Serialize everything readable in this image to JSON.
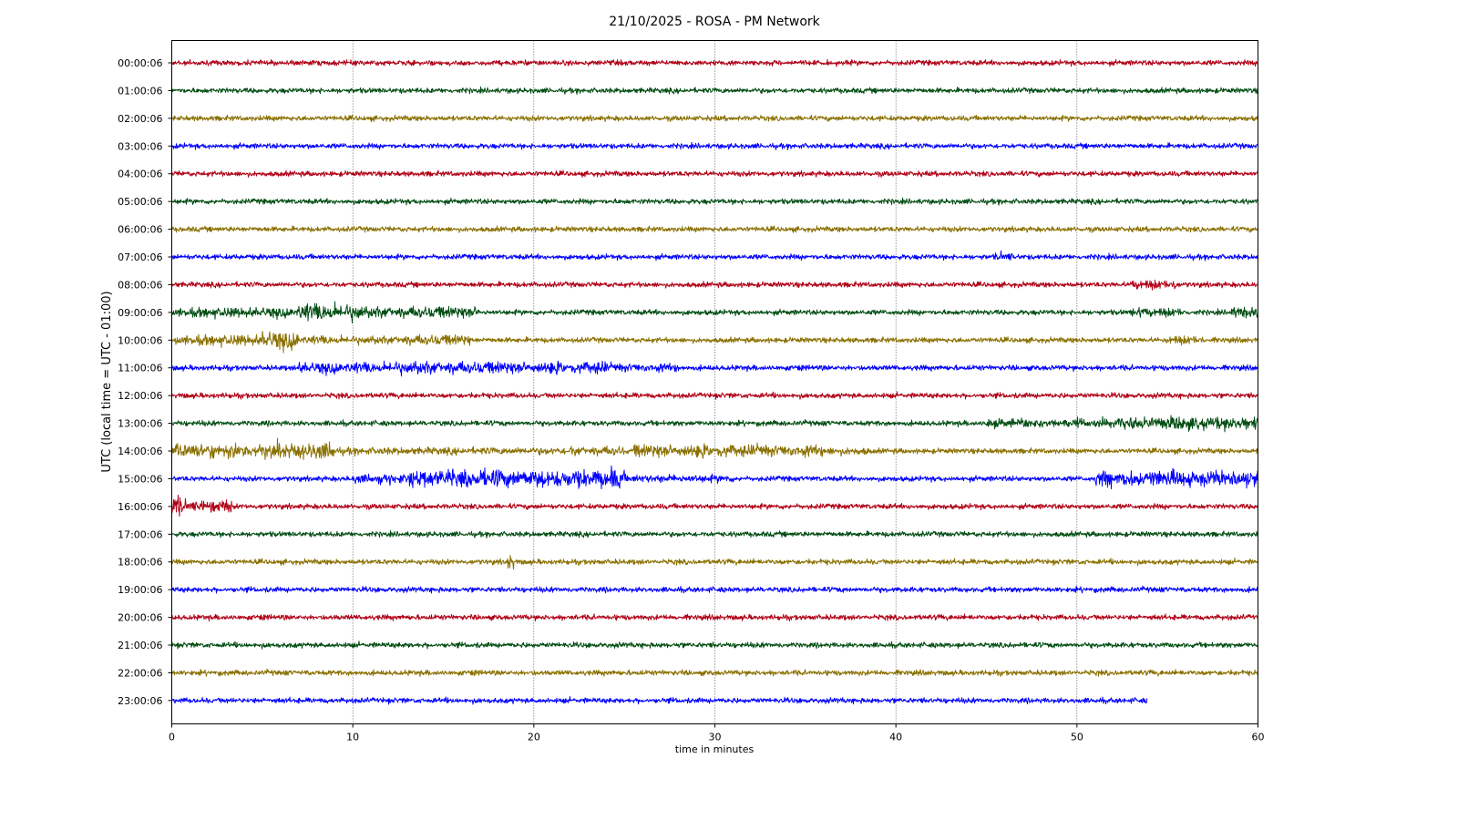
{
  "chart_data": {
    "type": "line",
    "title": "21/10/2025 - ROSA - PM Network",
    "xlabel": "time in minutes",
    "ylabel": "UTC (local time = UTC - 01:00)",
    "xlim": [
      0,
      60
    ],
    "x_ticks": [
      "0",
      "10",
      "20",
      "30",
      "40",
      "50",
      "60"
    ],
    "grid": {
      "x": true,
      "y": false
    },
    "trace_colors": [
      "#b00016",
      "#004d12",
      "#8a7000",
      "#0000ff"
    ],
    "series": [
      {
        "label": "00:00:06",
        "end_minute": 60,
        "bursts": []
      },
      {
        "label": "01:00:06",
        "end_minute": 60,
        "bursts": []
      },
      {
        "label": "02:00:06",
        "end_minute": 60,
        "bursts": []
      },
      {
        "label": "03:00:06",
        "end_minute": 60,
        "bursts": []
      },
      {
        "label": "04:00:06",
        "end_minute": 60,
        "bursts": []
      },
      {
        "label": "05:00:06",
        "end_minute": 60,
        "bursts": []
      },
      {
        "label": "06:00:06",
        "end_minute": 60,
        "bursts": []
      },
      {
        "label": "07:00:06",
        "end_minute": 60,
        "bursts": [
          [
            45.5,
            46.5,
            1.8
          ]
        ]
      },
      {
        "label": "08:00:06",
        "end_minute": 60,
        "bursts": [
          [
            53,
            55.5,
            1.8
          ]
        ]
      },
      {
        "label": "09:00:06",
        "end_minute": 60,
        "bursts": [
          [
            0,
            7,
            1.8
          ],
          [
            7,
            10.5,
            3.2
          ],
          [
            10.5,
            17,
            2.2
          ],
          [
            53,
            56,
            1.7
          ],
          [
            58.5,
            60,
            2.0
          ]
        ]
      },
      {
        "label": "10:00:06",
        "end_minute": 60,
        "bursts": [
          [
            0,
            5,
            2.0
          ],
          [
            5,
            7,
            3.2
          ],
          [
            7,
            12.5,
            1.6
          ],
          [
            12.5,
            16.5,
            2.0
          ],
          [
            55,
            57,
            1.7
          ]
        ]
      },
      {
        "label": "11:00:06",
        "end_minute": 60,
        "bursts": [
          [
            7,
            12,
            2.0
          ],
          [
            12,
            16,
            2.5
          ],
          [
            16,
            24,
            2.3
          ],
          [
            24,
            28,
            1.6
          ]
        ]
      },
      {
        "label": "12:00:06",
        "end_minute": 60,
        "bursts": []
      },
      {
        "label": "13:00:06",
        "end_minute": 60,
        "bursts": [
          [
            45,
            52,
            1.6
          ],
          [
            52,
            60,
            2.4
          ]
        ]
      },
      {
        "label": "14:00:06",
        "end_minute": 60,
        "bursts": [
          [
            0,
            8,
            2.8
          ],
          [
            8,
            9,
            3.5
          ],
          [
            9,
            22,
            1.4
          ],
          [
            22,
            25,
            1.8
          ],
          [
            25.5,
            31,
            2.5
          ],
          [
            31,
            36,
            2.2
          ],
          [
            36,
            38.5,
            1.5
          ]
        ]
      },
      {
        "label": "15:00:06",
        "end_minute": 60,
        "bursts": [
          [
            10,
            13,
            1.8
          ],
          [
            13,
            25,
            3.3
          ],
          [
            25,
            31,
            1.5
          ],
          [
            51,
            60,
            3.0
          ]
        ]
      },
      {
        "label": "16:00:06",
        "end_minute": 60,
        "bursts": [
          [
            0,
            0.6,
            4.0
          ],
          [
            0.6,
            3.3,
            2.3
          ]
        ]
      },
      {
        "label": "17:00:06",
        "end_minute": 60,
        "bursts": []
      },
      {
        "label": "18:00:06",
        "end_minute": 60,
        "bursts": [
          [
            18.5,
            18.9,
            3.0
          ]
        ]
      },
      {
        "label": "19:00:06",
        "end_minute": 60,
        "bursts": []
      },
      {
        "label": "20:00:06",
        "end_minute": 60,
        "bursts": []
      },
      {
        "label": "21:00:06",
        "end_minute": 60,
        "bursts": []
      },
      {
        "label": "22:00:06",
        "end_minute": 60,
        "bursts": []
      },
      {
        "label": "23:00:06",
        "end_minute": 53.9,
        "bursts": []
      }
    ]
  }
}
